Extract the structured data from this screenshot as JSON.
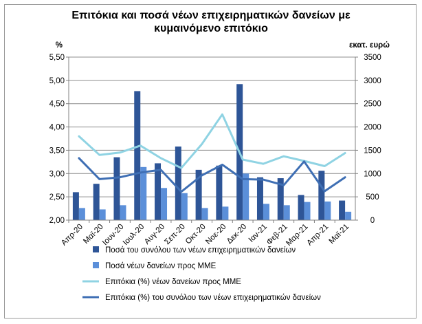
{
  "chart_data": {
    "type": "bar+line",
    "title_lines": [
      "Επιτόκια και ποσά νέων επιχειρηματικών δανείων με",
      "κυμαινόμενο επιτόκιο"
    ],
    "left_unit": "%",
    "right_unit": "εκατ. ευρώ",
    "left_axis": {
      "min": 2.0,
      "max": 5.5,
      "step": 0.5,
      "tick_labels": [
        "2,00",
        "2,50",
        "3,00",
        "3,50",
        "4,00",
        "4,50",
        "5,00",
        "5,50"
      ]
    },
    "right_axis": {
      "min": 0,
      "max": 3500,
      "step": 500,
      "tick_labels": [
        "0",
        "500",
        "1000",
        "1500",
        "2000",
        "2500",
        "3000",
        "3500"
      ]
    },
    "categories": [
      "Απρ-20",
      "Μαϊ-20",
      "Ιουν-20",
      "Ιουλ-20",
      "Αυγ-20",
      "Σεπ-20",
      "Οκτ-20",
      "Νοε-20",
      "Δεκ-20",
      "Ιαν-21",
      "Φεβ-21",
      "Μαρ-21",
      "Απρ-21",
      "Μαϊ-21"
    ],
    "bar_series": [
      {
        "name": "Ποσά του συνόλου των νέων επιχειρηματικών δανείων",
        "color": "#2e5597",
        "axis": "right",
        "values": [
          600,
          780,
          1350,
          2770,
          1220,
          1580,
          1080,
          1170,
          2920,
          920,
          900,
          540,
          1060,
          420
        ]
      },
      {
        "name": "Ποσά νέων δανείων προς ΜΜΕ",
        "color": "#5b8fd9",
        "axis": "right",
        "values": [
          260,
          230,
          320,
          1140,
          690,
          580,
          260,
          290,
          1000,
          350,
          320,
          390,
          400,
          180
        ]
      }
    ],
    "line_series": [
      {
        "name": "Επιτόκια (%) νέων δανείων προς ΜΜΕ",
        "color": "#8fd3e3",
        "axis": "left",
        "values": [
          3.8,
          3.4,
          3.45,
          3.6,
          3.33,
          3.12,
          3.63,
          4.27,
          3.3,
          3.21,
          3.37,
          3.27,
          3.16,
          3.44
        ]
      },
      {
        "name": "Επιτόκια (%) του συνόλου των νέων επιχειρηματικών δανείων",
        "color": "#3f6fb4",
        "axis": "left",
        "values": [
          3.33,
          2.88,
          2.92,
          3.02,
          3.08,
          2.61,
          2.96,
          3.19,
          2.88,
          2.87,
          2.75,
          3.26,
          2.62,
          2.92
        ]
      }
    ],
    "grid": true,
    "legend_position": "bottom"
  }
}
